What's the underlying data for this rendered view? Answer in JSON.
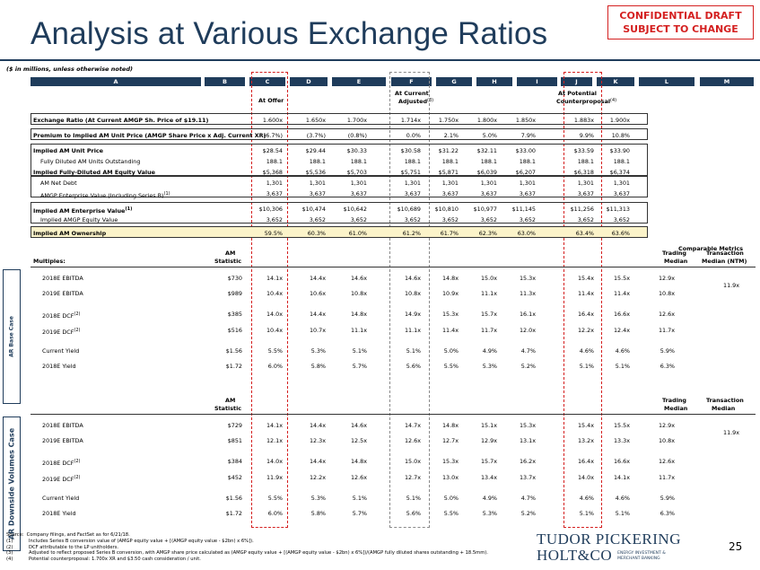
{
  "confidential": {
    "line1": "CONFIDENTIAL DRAFT",
    "line2": "SUBJECT TO CHANGE"
  },
  "title": "Analysis at Various Exchange Ratios",
  "units_note": "($ in millions, unless otherwise noted)",
  "column_letters": [
    "A",
    "B",
    "C",
    "D",
    "E",
    "F",
    "G",
    "H",
    "I",
    "J",
    "K",
    "L",
    "M"
  ],
  "column_headers": {
    "at_offer": "At Offer",
    "at_current_1": "At Current",
    "at_current_2": "Adjusted",
    "at_current_sup": "(3)",
    "at_potential_1": "At Potential",
    "at_potential_2": "Counterproposal",
    "at_potential_sup": "(4)"
  },
  "top_rows": [
    {
      "label": "Exchange Ratio (At Current AMGP Sh. Price of $19.11)",
      "values": [
        "1.600x",
        "1.650x",
        "1.700x",
        "1.714x",
        "1.750x",
        "1.800x",
        "1.850x",
        "1.883x",
        "1.900x"
      ]
    },
    {
      "label": "Premium to Implied AM Unit Price (AMGP Share Price x Adj. Current XR)",
      "values": [
        "(6.7%)",
        "(3.7%)",
        "(0.8%)",
        "0.0%",
        "2.1%",
        "5.0%",
        "7.9%",
        "9.9%",
        "10.8%"
      ]
    },
    {
      "label": "Implied AM Unit Price",
      "values": [
        "$28.54",
        "$29.44",
        "$30.33",
        "$30.58",
        "$31.22",
        "$32.11",
        "$33.00",
        "$33.59",
        "$33.90"
      ]
    },
    {
      "label": "Fully Diluted AM Units Outstanding",
      "values": [
        "188.1",
        "188.1",
        "188.1",
        "188.1",
        "188.1",
        "188.1",
        "188.1",
        "188.1",
        "188.1"
      ]
    },
    {
      "label": "Implied Fully-Diluted AM Equity Value",
      "values": [
        "$5,368",
        "$5,536",
        "$5,703",
        "$5,751",
        "$5,871",
        "$6,039",
        "$6,207",
        "$6,318",
        "$6,374"
      ]
    },
    {
      "label": "AM Net Debt",
      "values": [
        "1,301",
        "1,301",
        "1,301",
        "1,301",
        "1,301",
        "1,301",
        "1,301",
        "1,301",
        "1,301"
      ]
    },
    {
      "label": "AMGP Enterprise Value (Including Series B)",
      "sup": "(1)",
      "values": [
        "3,637",
        "3,637",
        "3,637",
        "3,637",
        "3,637",
        "3,637",
        "3,637",
        "3,637",
        "3,637"
      ]
    },
    {
      "label": "Implied AM Enterprise Value",
      "sup": "(1)",
      "values": [
        "$10,306",
        "$10,474",
        "$10,642",
        "$10,689",
        "$10,810",
        "$10,977",
        "$11,145",
        "$11,256",
        "$11,313"
      ]
    },
    {
      "label": "Implied AMGP Equity Value",
      "values": [
        "3,652",
        "3,652",
        "3,652",
        "3,652",
        "3,652",
        "3,652",
        "3,652",
        "3,652",
        "3,652"
      ]
    },
    {
      "label": "Implied AM Ownership",
      "values": [
        "59.5%",
        "60.3%",
        "61.0%",
        "61.2%",
        "61.7%",
        "62.3%",
        "63.0%",
        "63.4%",
        "63.6%"
      ]
    }
  ],
  "comparable_metrics_label": "Comparable Metrics",
  "base_case": {
    "side_label": "AR Base Case",
    "multiples_label": "Multiples:",
    "stat_header_1": "AM",
    "stat_header_2": "Statistic",
    "trading_1": "Trading",
    "trading_2": "Median",
    "transaction_1": "Transaction",
    "transaction_2": "Median (NTM)",
    "transaction_value": "11.9x",
    "rows": [
      {
        "label": "2018E EBITDA",
        "stat": "$730",
        "values": [
          "14.1x",
          "14.4x",
          "14.6x",
          "14.6x",
          "14.8x",
          "15.0x",
          "15.3x",
          "15.4x",
          "15.5x"
        ],
        "trading": "12.9x"
      },
      {
        "label": "2019E EBITDA",
        "stat": "$989",
        "values": [
          "10.4x",
          "10.6x",
          "10.8x",
          "10.8x",
          "10.9x",
          "11.1x",
          "11.3x",
          "11.4x",
          "11.4x"
        ],
        "trading": "10.8x"
      },
      {
        "label": "2018E DCF",
        "sup": "(2)",
        "stat": "$385",
        "values": [
          "14.0x",
          "14.4x",
          "14.8x",
          "14.9x",
          "15.3x",
          "15.7x",
          "16.1x",
          "16.4x",
          "16.6x"
        ],
        "trading": "12.6x"
      },
      {
        "label": "2019E DCF",
        "sup": "(2)",
        "stat": "$516",
        "values": [
          "10.4x",
          "10.7x",
          "11.1x",
          "11.1x",
          "11.4x",
          "11.7x",
          "12.0x",
          "12.2x",
          "12.4x"
        ],
        "trading": "11.7x"
      },
      {
        "label": "Current Yield",
        "stat": "$1.56",
        "values": [
          "5.5%",
          "5.3%",
          "5.1%",
          "5.1%",
          "5.0%",
          "4.9%",
          "4.7%",
          "4.6%",
          "4.6%"
        ],
        "trading": "5.9%"
      },
      {
        "label": "2018E Yield",
        "stat": "$1.72",
        "values": [
          "6.0%",
          "5.8%",
          "5.7%",
          "5.6%",
          "5.5%",
          "5.3%",
          "5.2%",
          "5.1%",
          "5.1%"
        ],
        "trading": "6.3%"
      }
    ]
  },
  "downside_case": {
    "side_label": "AR Downside Volumes Case",
    "stat_header_1": "AM",
    "stat_header_2": "Statistic",
    "trading_1": "Trading",
    "trading_2": "Median",
    "transaction_1": "Transaction",
    "transaction_2": "Median",
    "transaction_value": "11.9x",
    "rows": [
      {
        "label": "2018E EBITDA",
        "stat": "$729",
        "values": [
          "14.1x",
          "14.4x",
          "14.6x",
          "14.7x",
          "14.8x",
          "15.1x",
          "15.3x",
          "15.4x",
          "15.5x"
        ],
        "trading": "12.9x"
      },
      {
        "label": "2019E EBITDA",
        "stat": "$851",
        "values": [
          "12.1x",
          "12.3x",
          "12.5x",
          "12.6x",
          "12.7x",
          "12.9x",
          "13.1x",
          "13.2x",
          "13.3x"
        ],
        "trading": "10.8x"
      },
      {
        "label": "2018E DCF",
        "sup": "(2)",
        "stat": "$384",
        "values": [
          "14.0x",
          "14.4x",
          "14.8x",
          "15.0x",
          "15.3x",
          "15.7x",
          "16.2x",
          "16.4x",
          "16.6x"
        ],
        "trading": "12.6x"
      },
      {
        "label": "2019E DCF",
        "sup": "(2)",
        "stat": "$452",
        "values": [
          "11.9x",
          "12.2x",
          "12.6x",
          "12.7x",
          "13.0x",
          "13.4x",
          "13.7x",
          "14.0x",
          "14.1x"
        ],
        "trading": "11.7x"
      },
      {
        "label": "Current Yield",
        "stat": "$1.56",
        "values": [
          "5.5%",
          "5.3%",
          "5.1%",
          "5.1%",
          "5.0%",
          "4.9%",
          "4.7%",
          "4.6%",
          "4.6%"
        ],
        "trading": "5.9%"
      },
      {
        "label": "2018E Yield",
        "stat": "$1.72",
        "values": [
          "6.0%",
          "5.8%",
          "5.7%",
          "5.6%",
          "5.5%",
          "5.3%",
          "5.2%",
          "5.1%",
          "5.1%"
        ],
        "trading": "6.3%"
      }
    ]
  },
  "footnotes": [
    {
      "num": "Source:",
      "text": "Company filings, and FactSet as for 6/21/18."
    },
    {
      "num": "(1)",
      "text": "Includes Series B conversion value of (AMGP equity value + [(AMGP equity value - $2bn) x 6%])."
    },
    {
      "num": "(2)",
      "text": "DCF attributable to the LP unitholders."
    },
    {
      "num": "(3)",
      "text": "Adjusted to reflect proposed Series B conversion, with AMGP share price calculated as (AMGP equity value + [(AMGP equity value - $2bn) x 6%])/(AMGP fully diluted shares outstanding + 18.5mm)."
    },
    {
      "num": "(4)",
      "text": "Potential counterproposal: 1.700x XR and $3.50 cash consideration / unit."
    }
  ],
  "logo": {
    "line1": "TUDOR PICKERING",
    "line2": "HOLT&CO",
    "tag1": "ENERGY INVESTMENT &",
    "tag2": "MERCHANT BANKING"
  },
  "page_number": "25",
  "colors": {
    "navy": "#1f3c5b",
    "red": "#d42020",
    "highlight": "#fbf3c9"
  }
}
